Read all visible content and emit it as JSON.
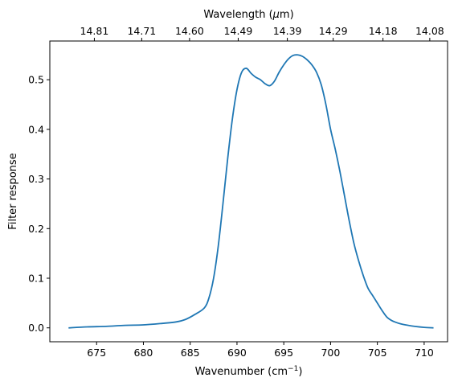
{
  "chart_data": {
    "type": "line",
    "title": "",
    "xlabel": "Wavenumber (cm",
    "xlabel_superscript": "−1",
    "xlabel_suffix": ")",
    "ylabel": "Filter response",
    "top_xlabel_prefix": "Wavelength (",
    "top_xlabel_mu": "μ",
    "top_xlabel_suffix": "m)",
    "xlim": [
      670.0,
      712.5
    ],
    "ylim": [
      -0.028,
      0.578
    ],
    "xticks": [
      675,
      680,
      685,
      690,
      695,
      700,
      705,
      710
    ],
    "xtick_labels": [
      "675",
      "680",
      "685",
      "690",
      "695",
      "700",
      "705",
      "710"
    ],
    "yticks": [
      0.0,
      0.1,
      0.2,
      0.3,
      0.4,
      0.5
    ],
    "ytick_labels": [
      "0.0",
      "0.1",
      "0.2",
      "0.3",
      "0.4",
      "0.5"
    ],
    "top_xticks": [
      674.76,
      679.82,
      684.93,
      690.13,
      695.38,
      700.28,
      705.6,
      710.6
    ],
    "top_xtick_labels": [
      "14.81",
      "14.71",
      "14.60",
      "14.49",
      "14.39",
      "14.29",
      "14.18",
      "14.08"
    ],
    "grid": false,
    "series": [
      {
        "color": "#1f77b4",
        "x": [
          672.0,
          674.0,
          676.0,
          678.0,
          680.0,
          682.0,
          683.5,
          684.5,
          685.5,
          686.5,
          687.0,
          687.5,
          688.0,
          688.5,
          689.0,
          689.5,
          690.0,
          690.5,
          691.0,
          691.5,
          692.0,
          692.5,
          693.0,
          693.5,
          694.0,
          694.5,
          695.0,
          695.5,
          696.0,
          696.5,
          697.0,
          697.5,
          698.0,
          698.5,
          699.0,
          699.5,
          700.0,
          700.5,
          701.0,
          701.5,
          702.0,
          702.5,
          703.0,
          703.5,
          704.0,
          704.5,
          705.0,
          705.5,
          706.0,
          706.5,
          707.0,
          707.5,
          708.0,
          709.0,
          710.0,
          711.0
        ],
        "y": [
          0.0,
          0.002,
          0.003,
          0.005,
          0.006,
          0.009,
          0.012,
          0.017,
          0.027,
          0.04,
          0.06,
          0.1,
          0.165,
          0.25,
          0.34,
          0.42,
          0.48,
          0.515,
          0.523,
          0.513,
          0.505,
          0.5,
          0.492,
          0.488,
          0.497,
          0.515,
          0.53,
          0.542,
          0.549,
          0.55,
          0.547,
          0.54,
          0.53,
          0.515,
          0.49,
          0.45,
          0.4,
          0.36,
          0.315,
          0.265,
          0.215,
          0.17,
          0.135,
          0.105,
          0.08,
          0.065,
          0.05,
          0.035,
          0.022,
          0.015,
          0.011,
          0.008,
          0.006,
          0.003,
          0.001,
          0.0
        ]
      }
    ]
  }
}
